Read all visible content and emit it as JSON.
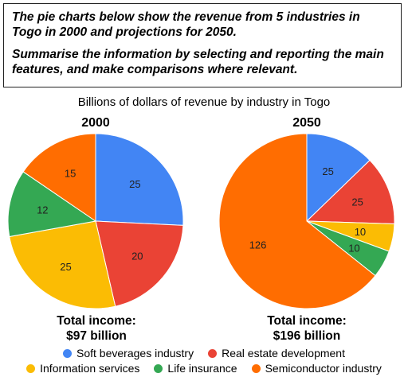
{
  "prompt": {
    "line1": "The pie charts below show the revenue from 5 industries in Togo in 2000 and projections for 2050.",
    "line2": "Summarise the information by selecting and reporting the main features, and make comparisons where relevant."
  },
  "chart_data": {
    "type": "pie",
    "title": "Billions of dollars of revenue by industry in Togo",
    "categories": [
      "Soft beverages industry",
      "Real estate development",
      "Information services",
      "Life insurance",
      "Semiconductor industry"
    ],
    "colors": [
      "#4285f4",
      "#ea4335",
      "#fbbc04",
      "#34a853",
      "#ff6d01"
    ],
    "pies": [
      {
        "name": "2000",
        "order": [
          "Soft beverages industry",
          "Real estate development",
          "Information services",
          "Life insurance",
          "Semiconductor industry"
        ],
        "values": [
          25,
          20,
          25,
          12,
          15
        ],
        "total_label": "Total income:",
        "total_value": "$97 billion"
      },
      {
        "name": "2050",
        "order": [
          "Soft beverages industry",
          "Real estate development",
          "Information services",
          "Life insurance",
          "Semiconductor industry"
        ],
        "values": [
          25,
          25,
          10,
          10,
          126
        ],
        "total_label": "Total income:",
        "total_value": "$196 billion"
      }
    ],
    "legend": {
      "row1": [
        "Soft beverages industry",
        "Real estate development"
      ],
      "row2": [
        "Information services",
        "Life insurance",
        "Semiconductor industry"
      ]
    }
  }
}
